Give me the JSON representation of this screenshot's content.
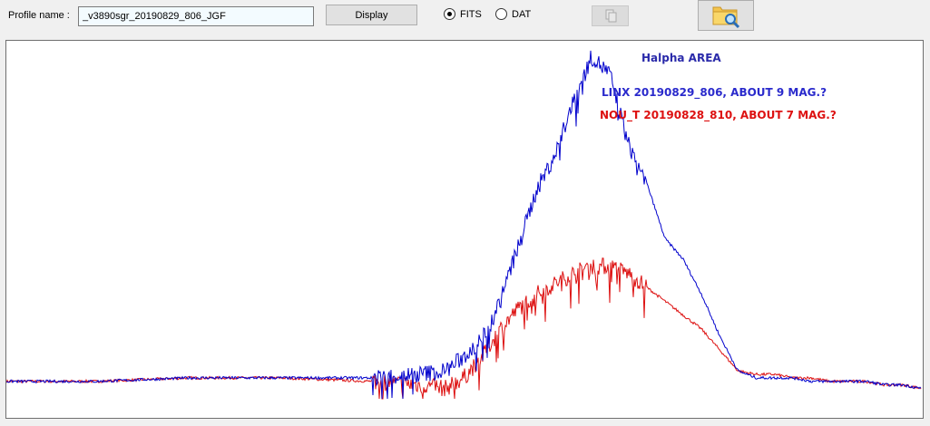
{
  "toolbar": {
    "profile_label": "Profile name :",
    "profile_value": "_v3890sgr_20190829_806_JGF",
    "display_label": "Display",
    "format_options": [
      {
        "label": "FITS",
        "selected": true
      },
      {
        "label": "DAT",
        "selected": false
      }
    ]
  },
  "plot": {
    "title": "Halpha  AREA",
    "legend": [
      {
        "label": "LINX  20190829_806,  ABOUT 9 MAG.?",
        "color": "#2222cc"
      },
      {
        "label": "NOU_T 20190828_810, ABOUT 7 MAG.?",
        "color": "#dd1111"
      }
    ]
  },
  "chart_data": {
    "type": "line",
    "title": "Halpha  AREA",
    "grid": false,
    "series": [
      {
        "name": "LINX  20190829_806,  ABOUT 9 MAG.?",
        "color": "#0000cc",
        "x": [
          0,
          10,
          20,
          30,
          40,
          45,
          48,
          50,
          52,
          54,
          56,
          58,
          60,
          62,
          64,
          66,
          68,
          70,
          72,
          74,
          76,
          78,
          80,
          82,
          84,
          86,
          88,
          90,
          92,
          94,
          96,
          98,
          100
        ],
        "y": [
          0.05,
          0.05,
          0.06,
          0.06,
          0.06,
          0.07,
          0.08,
          0.12,
          0.17,
          0.28,
          0.44,
          0.6,
          0.7,
          0.85,
          0.98,
          0.93,
          0.73,
          0.62,
          0.46,
          0.4,
          0.3,
          0.18,
          0.08,
          0.06,
          0.06,
          0.06,
          0.05,
          0.05,
          0.05,
          0.05,
          0.04,
          0.04,
          0.03
        ]
      },
      {
        "name": "NOU_T 20190828_810, ABOUT 7 MAG.?",
        "color": "#dd1111",
        "x": [
          0,
          10,
          20,
          30,
          40,
          45,
          48,
          50,
          52,
          54,
          56,
          58,
          60,
          62,
          64,
          66,
          68,
          70,
          72,
          74,
          76,
          78,
          80,
          82,
          84,
          86,
          88,
          90,
          92,
          94,
          96,
          98,
          100
        ],
        "y": [
          0.05,
          0.05,
          0.06,
          0.06,
          0.05,
          0.04,
          0.03,
          0.06,
          0.12,
          0.2,
          0.26,
          0.3,
          0.33,
          0.36,
          0.38,
          0.38,
          0.36,
          0.32,
          0.28,
          0.24,
          0.2,
          0.14,
          0.08,
          0.07,
          0.07,
          0.06,
          0.06,
          0.05,
          0.05,
          0.05,
          0.04,
          0.04,
          0.03
        ]
      }
    ]
  }
}
